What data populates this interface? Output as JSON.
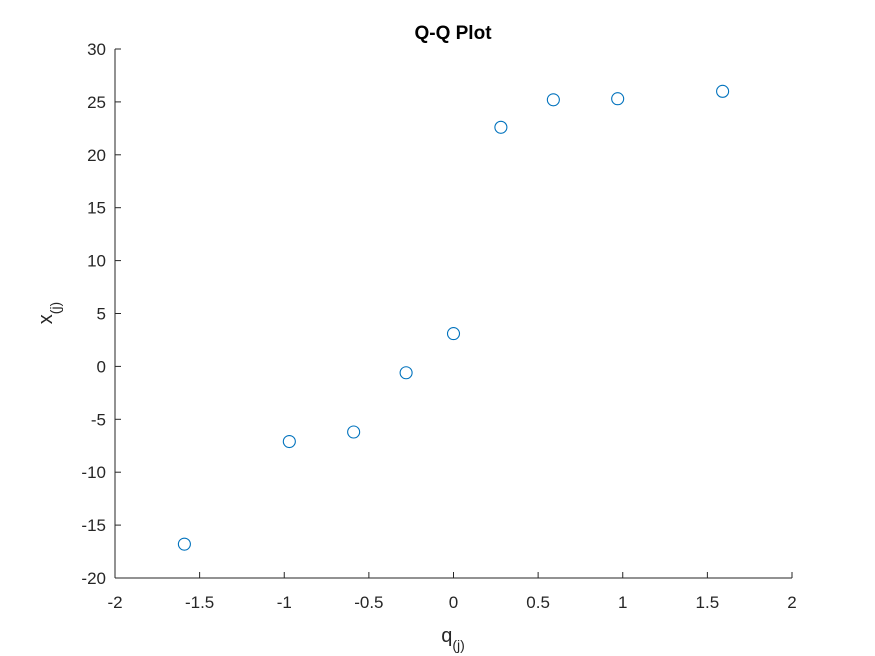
{
  "chart_data": {
    "type": "scatter",
    "title": "Q-Q Plot",
    "xlabel": {
      "base": "q",
      "sub": "(j)"
    },
    "ylabel": {
      "base": "x",
      "sub": "(j)"
    },
    "xlim": [
      -2,
      2
    ],
    "ylim": [
      -20,
      30
    ],
    "xticks": [
      -2,
      -1.5,
      -1,
      -0.5,
      0,
      0.5,
      1,
      1.5,
      2
    ],
    "xtick_labels": [
      "-2",
      "-1.5",
      "-1",
      "-0.5",
      "0",
      "0.5",
      "1",
      "1.5",
      "2"
    ],
    "yticks": [
      -20,
      -15,
      -10,
      -5,
      0,
      5,
      10,
      15,
      20,
      25,
      30
    ],
    "ytick_labels": [
      "-20",
      "-15",
      "-10",
      "-5",
      "0",
      "5",
      "10",
      "15",
      "20",
      "25",
      "30"
    ],
    "grid": false,
    "marker": "open-circle",
    "color": "#0072BD",
    "x": [
      -1.59,
      -0.97,
      -0.59,
      -0.28,
      0,
      0.28,
      0.59,
      0.97,
      1.59
    ],
    "y": [
      -16.8,
      -7.1,
      -6.2,
      -0.6,
      3.1,
      22.6,
      25.2,
      25.3,
      26.0
    ]
  }
}
